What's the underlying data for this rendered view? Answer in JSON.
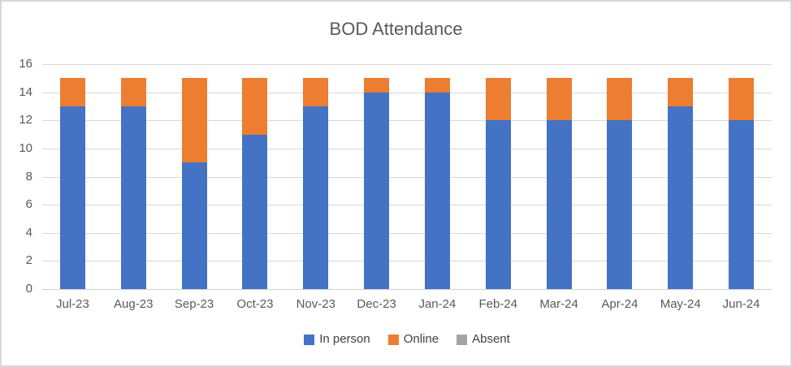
{
  "chart_data": {
    "type": "bar",
    "stacked": true,
    "title": "BOD Attendance",
    "categories": [
      "Jul-23",
      "Aug-23",
      "Sep-23",
      "Oct-23",
      "Nov-23",
      "Dec-23",
      "Jan-24",
      "Feb-24",
      "Mar-24",
      "Apr-24",
      "May-24",
      "Jun-24"
    ],
    "series": [
      {
        "name": "In person",
        "color": "#4472C4",
        "values": [
          13,
          13,
          9,
          11,
          13,
          14,
          14,
          12,
          12,
          12,
          13,
          12
        ]
      },
      {
        "name": "Online",
        "color": "#ED7D31",
        "values": [
          2,
          2,
          6,
          4,
          2,
          1,
          1,
          3,
          3,
          3,
          2,
          3
        ]
      },
      {
        "name": "Absent",
        "color": "#A5A5A5",
        "values": [
          0,
          0,
          0,
          0,
          0,
          0,
          0,
          0,
          0,
          0,
          0,
          0
        ]
      }
    ],
    "xlabel": "",
    "ylabel": "",
    "ylim": [
      0,
      16
    ],
    "yticks": [
      0,
      2,
      4,
      6,
      8,
      10,
      12,
      14,
      16
    ],
    "grid": true,
    "legend_position": "bottom"
  },
  "colors": {
    "title_text": "#595959",
    "axis_text": "#595959",
    "gridline": "#D9D9D9",
    "frame_border": "#D8D8D8",
    "background": "#FFFFFF"
  }
}
